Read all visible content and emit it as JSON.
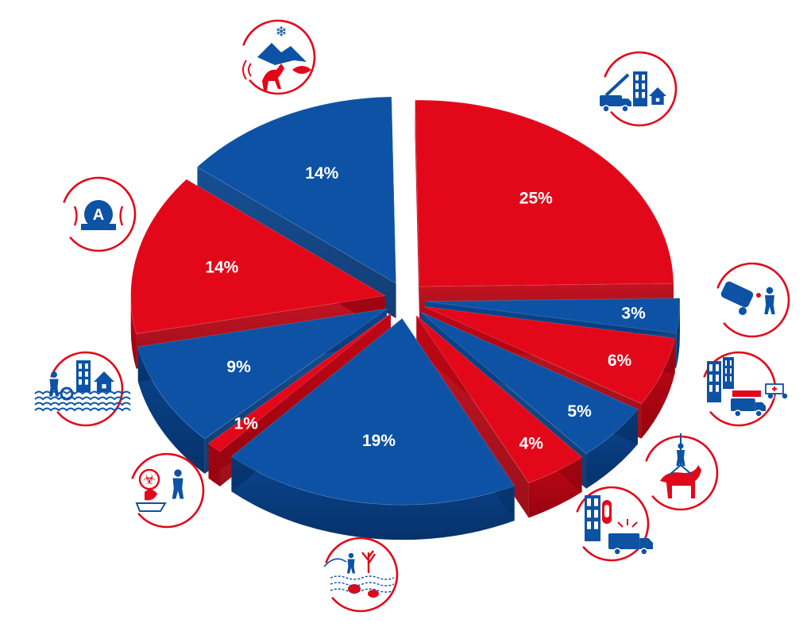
{
  "chart_data": {
    "type": "pie",
    "style": "3d-exploded",
    "title": "",
    "legend": "none",
    "colors": {
      "blue": "#0d52a4",
      "red": "#e2081a"
    },
    "slices": [
      {
        "value": 25,
        "label": "25%",
        "color": "red",
        "icon": "building-fire-ladder-truck-icon"
      },
      {
        "value": 3,
        "label": "3%",
        "color": "blue",
        "icon": "overturned-car-rescue-icon"
      },
      {
        "value": 6,
        "label": "6%",
        "color": "red",
        "icon": "fire-truck-ambulance-icon"
      },
      {
        "value": 5,
        "label": "5%",
        "color": "blue",
        "icon": "animal-rescue-icon"
      },
      {
        "value": 4,
        "label": "4%",
        "color": "red",
        "icon": "building-alarm-truck-icon"
      },
      {
        "value": 19,
        "label": "19%",
        "color": "blue",
        "icon": "water-diver-pollution-icon"
      },
      {
        "value": 1,
        "label": "1%",
        "color": "red",
        "icon": "biohazard-worker-icon"
      },
      {
        "value": 9,
        "label": "9%",
        "color": "blue",
        "icon": "flood-rescue-icon"
      },
      {
        "value": 14,
        "label": "14%",
        "color": "red",
        "icon": "automatic-alarm-icon"
      },
      {
        "value": 14,
        "label": "14%",
        "color": "blue",
        "icon": "mountain-snow-animal-icon"
      }
    ]
  },
  "icons": {
    "automatic_alarm_letter": "A"
  }
}
